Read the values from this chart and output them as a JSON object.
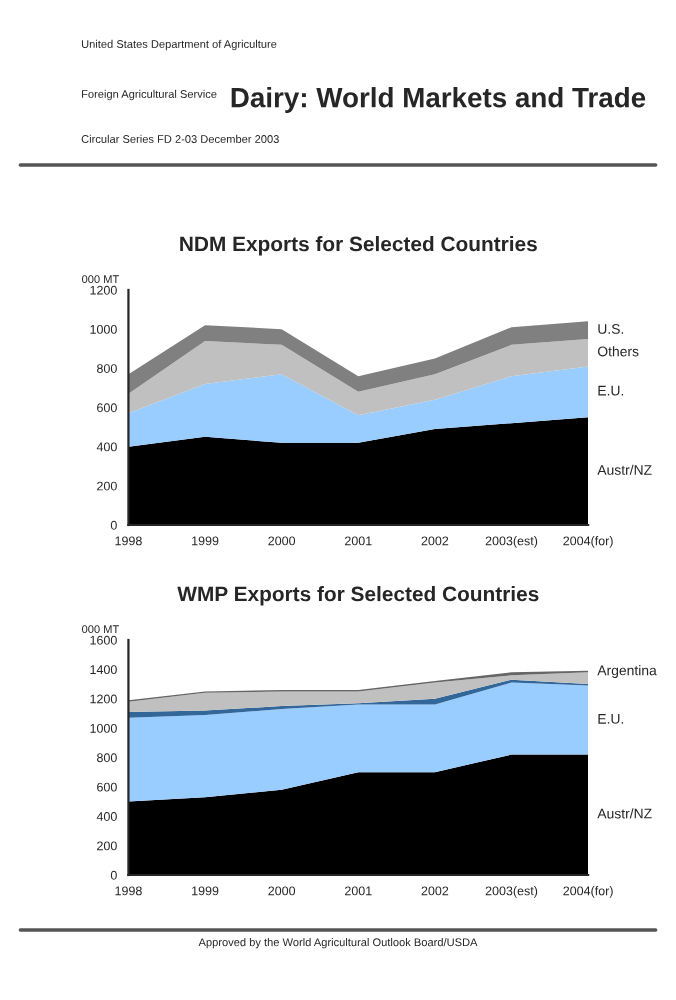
{
  "chart_data": [
    {
      "type": "area",
      "stacked": true,
      "title": "NDM Exports for Selected Countries",
      "ylabel": "000 MT",
      "annotations": [
        "United States Department of Agriculture",
        "Foreign Agricultural Service",
        "Circular Series FD 2-03 December 2003",
        "Dairy: World Markets and Trade"
      ],
      "categories": [
        "1998",
        "1999",
        "2000",
        "2001",
        "2002",
        "2003(est)",
        "2004(for)"
      ],
      "ylim": [
        0,
        1200
      ],
      "yticks": [
        0,
        200,
        400,
        600,
        800,
        1000,
        1200
      ],
      "legend": false,
      "grid": false,
      "series": [
        {
          "name": "Austr/NZ",
          "color": "#000000",
          "values": [
            400,
            450,
            420,
            420,
            490,
            520,
            550
          ]
        },
        {
          "name": "E.U.",
          "color": "#99ccff",
          "values": [
            170,
            270,
            350,
            140,
            150,
            240,
            260
          ]
        },
        {
          "name": "Others",
          "color": "#c0c0c0",
          "values": [
            100,
            220,
            150,
            120,
            130,
            160,
            140
          ]
        },
        {
          "name": "U.S.",
          "color": "#808080",
          "values": [
            100,
            80,
            80,
            80,
            80,
            90,
            90
          ]
        }
      ]
    },
    {
      "type": "area",
      "stacked": true,
      "title": "WMP Exports for Selected Countries",
      "ylabel": "000 MT",
      "annotations": [
        "Approved by the World Agricultural Outlook Board/USDA"
      ],
      "categories": [
        "1998",
        "1999",
        "2000",
        "2001",
        "2002",
        "2003(est)",
        "2004(for)"
      ],
      "ylim": [
        0,
        1600
      ],
      "yticks": [
        0,
        200,
        400,
        600,
        800,
        1000,
        1200,
        1400,
        1600
      ],
      "legend": false,
      "grid": false,
      "series": [
        {
          "name": "Austr/NZ",
          "color": "#000000",
          "values": [
            500,
            530,
            580,
            700,
            700,
            820,
            820
          ]
        },
        {
          "name": "E.U.",
          "color": "#99ccff",
          "values": [
            570,
            560,
            550,
            460,
            460,
            490,
            470
          ]
        },
        {
          "color": "#336699",
          "values": [
            40,
            30,
            20,
            10,
            40,
            20,
            10
          ]
        },
        {
          "color": "#c0c0c0",
          "values": [
            70,
            120,
            100,
            80,
            110,
            30,
            80
          ]
        },
        {
          "name": "Argentina",
          "color": "#666666",
          "values": [
            10,
            10,
            10,
            10,
            10,
            20,
            10
          ]
        }
      ]
    }
  ]
}
